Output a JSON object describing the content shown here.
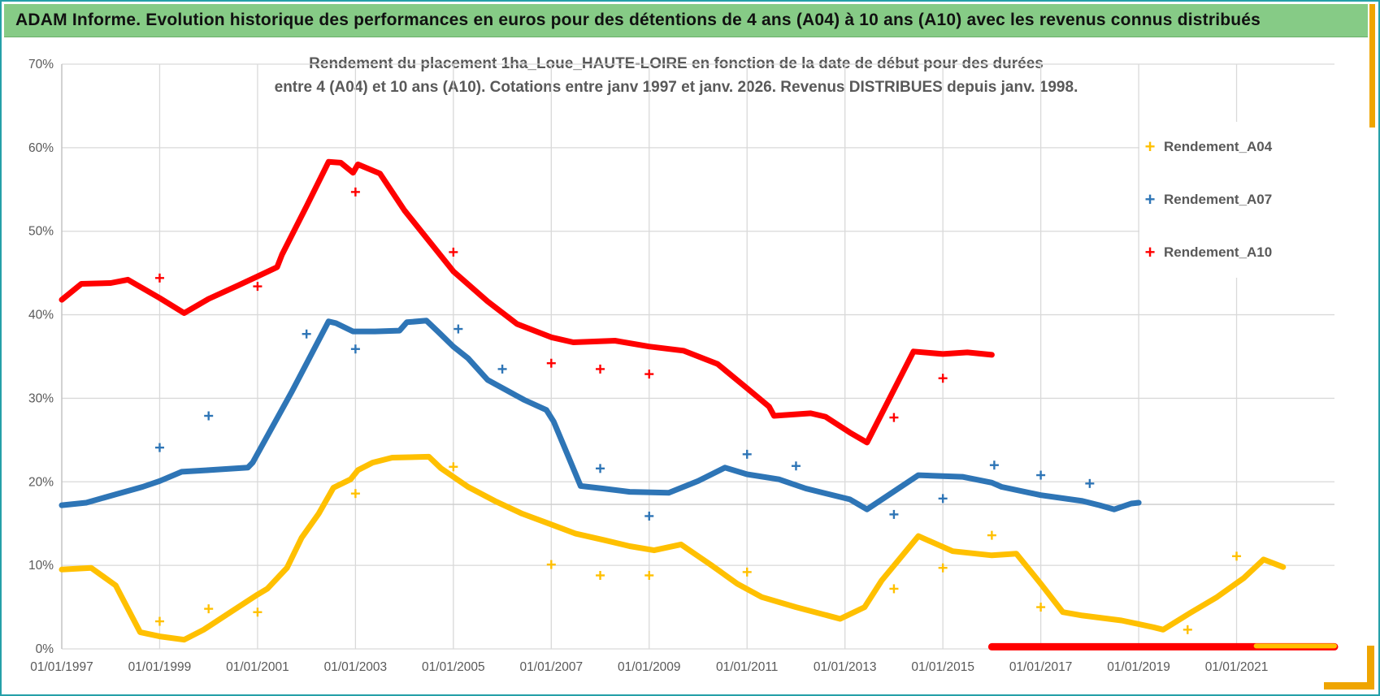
{
  "window": {
    "header_title": "ADAM Informe. Evolution historique des performances en euros pour des détentions de 4 ans (A04) à 10 ans (A10) avec les revenus connus distribués",
    "accent_colors": {
      "frame_teal": "#25a0a8",
      "corner_orange": "#efa500",
      "header_green": "#86cb86"
    }
  },
  "chart_data": {
    "type": "scatter",
    "title_lines": [
      "Rendement du placement 1ha_Loue_HAUTE-LOIRE en fonction de la date de début pour des durées",
      "entre 4 (A04) et 10 ans (A10). Cotations entre janv 1997 et janv. 2026. Revenus DISTRIBUES depuis janv. 1998."
    ],
    "x_axis": {
      "tick_years": [
        1997,
        1999,
        2001,
        2003,
        2005,
        2007,
        2009,
        2011,
        2013,
        2015,
        2017,
        2019,
        2021
      ],
      "tick_labels": [
        "01/01/1997",
        "01/01/1999",
        "01/01/2001",
        "01/01/2003",
        "01/01/2005",
        "01/01/2007",
        "01/01/2009",
        "01/01/2011",
        "01/01/2013",
        "01/01/2015",
        "01/01/2017",
        "01/01/2019",
        "01/01/2021"
      ],
      "range": [
        1997.0,
        2023.0
      ]
    },
    "y_axis": {
      "tick_labels": [
        "0%",
        "10%",
        "20%",
        "30%",
        "40%",
        "50%",
        "60%",
        "70%"
      ],
      "tick_values": [
        0,
        10,
        20,
        30,
        40,
        50,
        60,
        70
      ],
      "range": [
        0,
        70
      ],
      "grid": true
    },
    "reference_line_value": 17.3,
    "layout": {
      "grid_color": "#d9d9d9",
      "axis_color": "#bfbfbf",
      "label_color": "#595959",
      "legend_position": "right-top"
    },
    "legend": [
      {
        "label": "Rendement_A04",
        "color": "#FFC000"
      },
      {
        "label": "Rendement_A07",
        "color": "#2E75B6"
      },
      {
        "label": "Rendement_A10",
        "color": "#FF0000"
      }
    ],
    "series": [
      {
        "name": "Rendement_A04",
        "color": "#FFC000",
        "line": [
          [
            1997.0,
            9.5
          ],
          [
            1997.6,
            9.7
          ],
          [
            1998.1,
            7.6
          ],
          [
            1998.6,
            2.0
          ],
          [
            1999.0,
            1.5
          ],
          [
            1999.5,
            1.1
          ],
          [
            1999.9,
            2.3
          ],
          [
            2000.5,
            4.6
          ],
          [
            2001.0,
            6.5
          ],
          [
            2001.2,
            7.2
          ],
          [
            2001.6,
            9.7
          ],
          [
            2001.9,
            13.3
          ],
          [
            2002.25,
            16.2
          ],
          [
            2002.55,
            19.3
          ],
          [
            2002.9,
            20.3
          ],
          [
            2003.05,
            21.4
          ],
          [
            2003.35,
            22.3
          ],
          [
            2003.75,
            22.9
          ],
          [
            2004.5,
            23.0
          ],
          [
            2004.75,
            21.6
          ],
          [
            2005.3,
            19.4
          ],
          [
            2005.85,
            17.7
          ],
          [
            2006.4,
            16.2
          ],
          [
            2006.95,
            15.0
          ],
          [
            2007.5,
            13.8
          ],
          [
            2008.1,
            13.0
          ],
          [
            2008.6,
            12.3
          ],
          [
            2009.1,
            11.8
          ],
          [
            2009.65,
            12.5
          ],
          [
            2010.25,
            10.1
          ],
          [
            2010.8,
            7.8
          ],
          [
            2011.3,
            6.2
          ],
          [
            2012.0,
            5.0
          ],
          [
            2012.9,
            3.6
          ],
          [
            2013.4,
            5.0
          ],
          [
            2013.75,
            8.2
          ],
          [
            2014.5,
            13.5
          ],
          [
            2015.2,
            11.7
          ],
          [
            2016.0,
            11.2
          ],
          [
            2016.5,
            11.4
          ],
          [
            2017.0,
            7.8
          ],
          [
            2017.45,
            4.4
          ],
          [
            2017.85,
            4.0
          ],
          [
            2018.65,
            3.4
          ],
          [
            2019.3,
            2.6
          ],
          [
            2019.5,
            2.3
          ],
          [
            2020.05,
            4.3
          ],
          [
            2020.6,
            6.2
          ],
          [
            2021.15,
            8.5
          ],
          [
            2021.55,
            10.7
          ],
          [
            2021.95,
            9.8
          ]
        ],
        "outliers": [
          [
            1999.0,
            3.3
          ],
          [
            2000.0,
            4.8
          ],
          [
            2001.0,
            4.4
          ],
          [
            2003.0,
            18.6
          ],
          [
            2005.0,
            21.8
          ],
          [
            2007.0,
            10.1
          ],
          [
            2008.0,
            8.8
          ],
          [
            2009.0,
            8.8
          ],
          [
            2011.0,
            9.2
          ],
          [
            2014.0,
            7.2
          ],
          [
            2015.0,
            9.7
          ],
          [
            2016.0,
            13.6
          ],
          [
            2017.0,
            5.0
          ],
          [
            2020.0,
            2.3
          ],
          [
            2021.0,
            11.1
          ]
        ],
        "bottom_bar": {
          "from": 2021.4,
          "to": 2023.0,
          "value": 0.35
        }
      },
      {
        "name": "Rendement_A07",
        "color": "#2E75B6",
        "line": [
          [
            1997.0,
            17.2
          ],
          [
            1997.5,
            17.5
          ],
          [
            1998.1,
            18.5
          ],
          [
            1998.65,
            19.4
          ],
          [
            1999.0,
            20.1
          ],
          [
            1999.45,
            21.2
          ],
          [
            2000.0,
            21.4
          ],
          [
            2000.8,
            21.7
          ],
          [
            2000.9,
            22.3
          ],
          [
            2001.7,
            30.8
          ],
          [
            2002.45,
            39.2
          ],
          [
            2002.6,
            39.0
          ],
          [
            2002.95,
            38.0
          ],
          [
            2003.4,
            38.0
          ],
          [
            2003.9,
            38.1
          ],
          [
            2004.05,
            39.1
          ],
          [
            2004.45,
            39.3
          ],
          [
            2004.7,
            37.9
          ],
          [
            2005.0,
            36.2
          ],
          [
            2005.3,
            34.8
          ],
          [
            2005.7,
            32.2
          ],
          [
            2006.45,
            29.8
          ],
          [
            2006.9,
            28.6
          ],
          [
            2007.05,
            27.2
          ],
          [
            2007.35,
            23.0
          ],
          [
            2007.6,
            19.5
          ],
          [
            2008.05,
            19.2
          ],
          [
            2008.6,
            18.8
          ],
          [
            2009.4,
            18.7
          ],
          [
            2010.0,
            20.1
          ],
          [
            2010.55,
            21.7
          ],
          [
            2011.0,
            20.9
          ],
          [
            2011.65,
            20.3
          ],
          [
            2012.2,
            19.2
          ],
          [
            2013.1,
            17.9
          ],
          [
            2013.45,
            16.7
          ],
          [
            2014.5,
            20.8
          ],
          [
            2015.4,
            20.6
          ],
          [
            2016.0,
            19.9
          ],
          [
            2016.2,
            19.4
          ],
          [
            2017.0,
            18.4
          ],
          [
            2017.85,
            17.7
          ],
          [
            2018.2,
            17.2
          ],
          [
            2018.5,
            16.7
          ],
          [
            2018.85,
            17.4
          ],
          [
            2019.0,
            17.5
          ]
        ],
        "outliers": [
          [
            1999.0,
            24.1
          ],
          [
            2000.0,
            27.9
          ],
          [
            2002.0,
            37.7
          ],
          [
            2003.0,
            35.9
          ],
          [
            2005.1,
            38.3
          ],
          [
            2006.0,
            33.5
          ],
          [
            2008.0,
            21.6
          ],
          [
            2009.0,
            15.9
          ],
          [
            2011.0,
            23.3
          ],
          [
            2012.0,
            21.9
          ],
          [
            2014.0,
            16.1
          ],
          [
            2015.0,
            18.0
          ],
          [
            2016.05,
            22.0
          ],
          [
            2017.0,
            20.8
          ],
          [
            2018.0,
            19.8
          ]
        ],
        "bottom_bar": null
      },
      {
        "name": "Rendement_A10",
        "color": "#FF0000",
        "line": [
          [
            1997.0,
            41.8
          ],
          [
            1997.4,
            43.7
          ],
          [
            1998.0,
            43.8
          ],
          [
            1998.35,
            44.2
          ],
          [
            1999.0,
            42.0
          ],
          [
            1999.5,
            40.2
          ],
          [
            2000.0,
            41.9
          ],
          [
            2000.6,
            43.5
          ],
          [
            2001.0,
            44.6
          ],
          [
            2001.4,
            45.7
          ],
          [
            2001.5,
            47.2
          ],
          [
            2002.0,
            53.0
          ],
          [
            2002.45,
            58.3
          ],
          [
            2002.7,
            58.2
          ],
          [
            2002.95,
            57.0
          ],
          [
            2003.05,
            58.0
          ],
          [
            2003.5,
            56.9
          ],
          [
            2004.0,
            52.5
          ],
          [
            2005.0,
            45.2
          ],
          [
            2005.7,
            41.6
          ],
          [
            2006.3,
            38.9
          ],
          [
            2007.0,
            37.3
          ],
          [
            2007.45,
            36.7
          ],
          [
            2008.3,
            36.9
          ],
          [
            2009.0,
            36.2
          ],
          [
            2009.7,
            35.7
          ],
          [
            2010.4,
            34.1
          ],
          [
            2011.0,
            31.2
          ],
          [
            2011.45,
            29.0
          ],
          [
            2011.55,
            27.9
          ],
          [
            2012.3,
            28.2
          ],
          [
            2012.6,
            27.8
          ],
          [
            2013.1,
            25.9
          ],
          [
            2013.45,
            24.7
          ],
          [
            2014.4,
            35.6
          ],
          [
            2015.0,
            35.3
          ],
          [
            2015.5,
            35.5
          ],
          [
            2016.0,
            35.2
          ]
        ],
        "outliers": [
          [
            1999.0,
            44.4
          ],
          [
            2001.0,
            43.4
          ],
          [
            2003.0,
            54.7
          ],
          [
            2005.0,
            47.5
          ],
          [
            2007.0,
            34.2
          ],
          [
            2008.0,
            33.5
          ],
          [
            2009.0,
            32.9
          ],
          [
            2014.0,
            27.7
          ],
          [
            2015.0,
            32.4
          ]
        ],
        "bottom_bar": {
          "from": 2016.0,
          "to": 2023.0,
          "value": 0.25
        }
      }
    ]
  }
}
